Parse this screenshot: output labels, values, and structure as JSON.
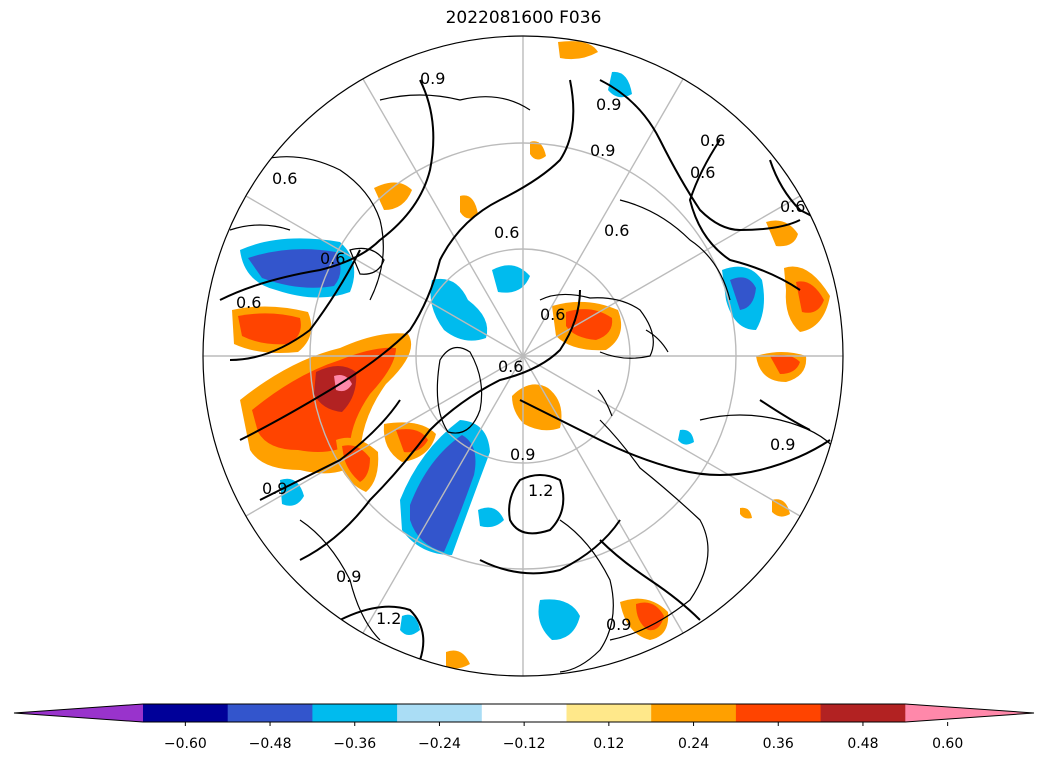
{
  "title": "2022081600 F036",
  "colorbar": {
    "ticks": [
      "−0.60",
      "−0.48",
      "−0.36",
      "−0.24",
      "−0.12",
      "0.12",
      "0.24",
      "0.36",
      "0.48",
      "0.60"
    ],
    "colors": [
      "#9933cc",
      "#000099",
      "#3355cc",
      "#00bbee",
      "#aaddf5",
      "#ffffff",
      "#ffe88a",
      "#ffa000",
      "#ff4400",
      "#b22222",
      "#ff88aa"
    ]
  },
  "contour_labels": [
    "0.9",
    "0.9",
    "0.9",
    "0.6",
    "0.6",
    "0.6",
    "0.6",
    "0.6",
    "0.6",
    "0.6",
    "0.6",
    "0.9",
    "0.9",
    "0.9",
    "1.2",
    "0.9",
    "0.9",
    "1.2",
    "0.6",
    "0.6"
  ]
}
